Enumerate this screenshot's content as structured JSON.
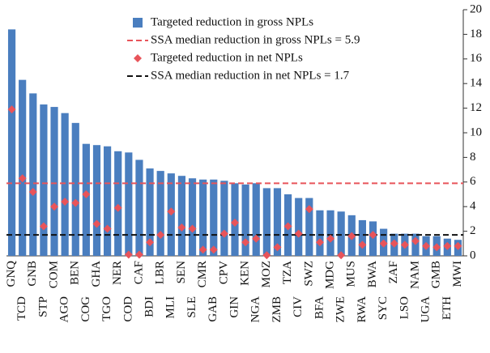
{
  "chart_data": {
    "type": "bar",
    "categories": [
      "GNQ",
      "TCD",
      "GNB",
      "STP",
      "COM",
      "AGO",
      "BEN",
      "COG",
      "GHA",
      "TGO",
      "NER",
      "COD",
      "CAF",
      "BDI",
      "LBR",
      "MLI",
      "SEN",
      "SLE",
      "CMR",
      "GAB",
      "CPV",
      "GIN",
      "KEN",
      "NGA",
      "MOZ",
      "ZMB",
      "TZA",
      "CIV",
      "SWZ",
      "BFA",
      "MDG",
      "ZWE",
      "MUS",
      "RWA",
      "BWA",
      "SYC",
      "ZAF",
      "LSO",
      "NAM",
      "UGA",
      "GMB",
      "ETH",
      "MWI"
    ],
    "series": [
      {
        "name": "Targeted reduction in gross NPLs",
        "color": "#4a7ebf",
        "style": "bar",
        "values": [
          18.4,
          14.3,
          13.2,
          12.3,
          12.1,
          11.6,
          10.8,
          9.1,
          9.0,
          8.9,
          8.5,
          8.4,
          7.8,
          7.1,
          6.9,
          6.7,
          6.5,
          6.3,
          6.2,
          6.2,
          6.1,
          5.9,
          5.8,
          5.9,
          5.5,
          5.5,
          5.0,
          4.7,
          4.7,
          3.7,
          3.7,
          3.6,
          3.3,
          2.9,
          2.8,
          2.2,
          1.8,
          1.8,
          1.8,
          1.6,
          1.6,
          1.4,
          1.3
        ]
      },
      {
        "name": "Targeted reduction in net NPLs",
        "color": "#e8545a",
        "style": "diamond",
        "values": [
          11.9,
          6.3,
          5.2,
          2.4,
          4.0,
          4.4,
          4.3,
          5.0,
          2.6,
          2.2,
          3.9,
          0.1,
          0.1,
          1.1,
          1.7,
          3.6,
          2.3,
          2.2,
          0.5,
          0.5,
          1.8,
          2.7,
          1.1,
          1.4,
          0.05,
          0.7,
          2.4,
          1.8,
          3.8,
          1.1,
          1.4,
          0.05,
          1.6,
          0.9,
          1.7,
          1.0,
          1.0,
          0.9,
          1.2,
          0.8,
          0.7,
          0.8,
          0.8
        ]
      }
    ],
    "reference_lines": [
      {
        "name": "SSA median reduction in gross NPLs = 5.9",
        "value": 5.9,
        "color": "#e8545a",
        "style": "dashed"
      },
      {
        "name": "SSA median reduction in net NPLs = 1.7",
        "value": 1.7,
        "color": "#111111",
        "style": "dashed"
      }
    ],
    "ylim": [
      0,
      20
    ],
    "yticks": [
      0,
      2,
      4,
      6,
      8,
      10,
      12,
      14,
      16,
      18,
      20
    ],
    "y_axis_side": "right"
  }
}
